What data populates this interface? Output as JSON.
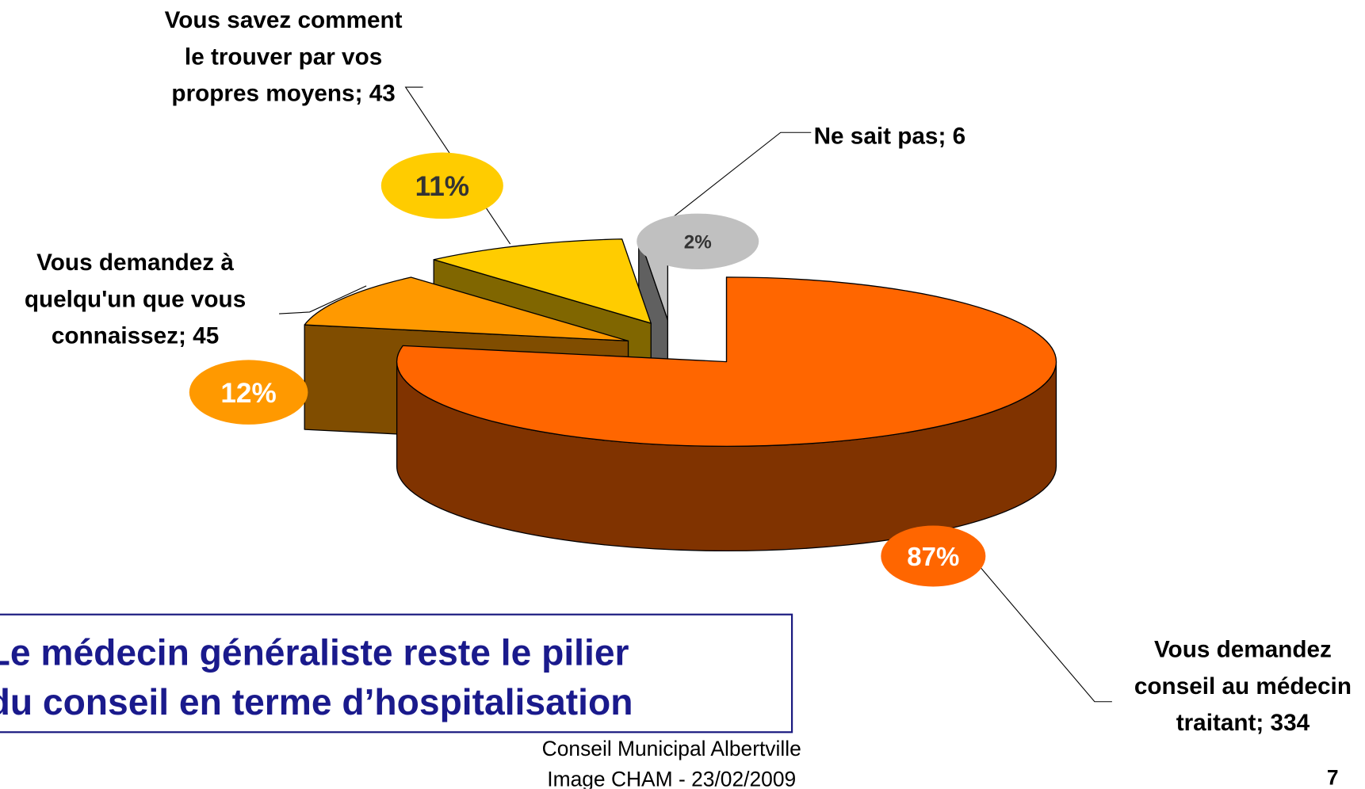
{
  "chart_data": {
    "type": "pie3d",
    "values": [
      334,
      45,
      43,
      6
    ],
    "value_labels": [
      "Vous demandez conseil au médecin traitant; 334",
      "Vous demandez à quelqu'un que vous connaissez; 45",
      "Vous savez comment le trouver par vos propres moyens; 43",
      "Ne sait pas; 6"
    ],
    "percent_labels": [
      "87%",
      "12%",
      "11%",
      "2%"
    ],
    "colors": [
      "#ff6600",
      "#ff9900",
      "#ffcc00",
      "#c0c0c0"
    ]
  },
  "caption": [
    "Le médecin généraliste reste le pilier",
    "du conseil en terme d’hospitalisation"
  ],
  "footer": [
    "Conseil Municipal Albertville",
    "Image CHAM - 23/02/2009"
  ],
  "page_number": 7
}
